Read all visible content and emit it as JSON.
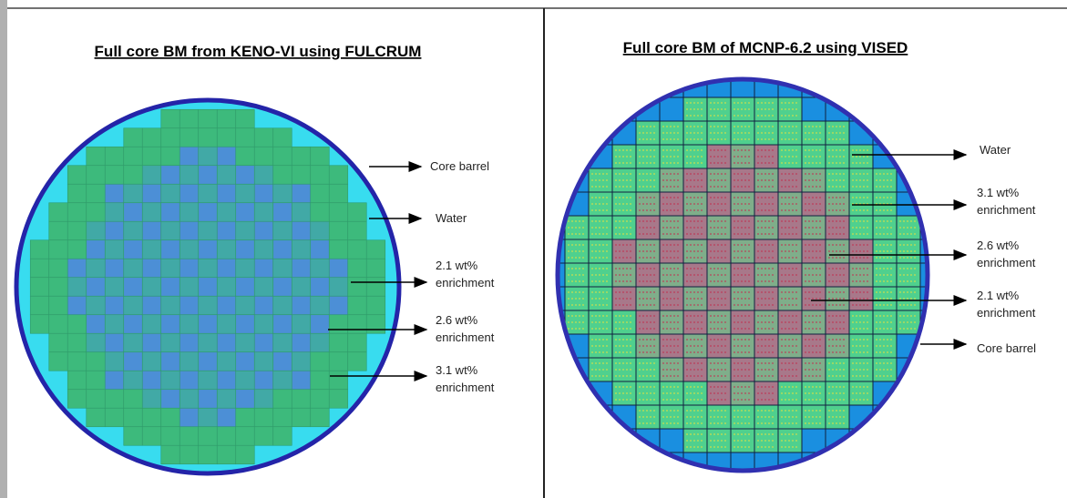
{
  "panels": [
    {
      "title": "Full core BM from KENO-VI using FULCRUM",
      "labels": [
        {
          "lines": [
            "Core barrel"
          ]
        },
        {
          "lines": [
            "Water"
          ]
        },
        {
          "lines": [
            "2.1 wt%",
            "enrichment"
          ]
        },
        {
          "lines": [
            "2.6 wt%",
            "enrichment"
          ]
        },
        {
          "lines": [
            "3.1 wt%",
            "enrichment"
          ]
        }
      ]
    },
    {
      "title": "Full core BM of MCNP-6.2 using VISED",
      "labels": [
        {
          "lines": [
            "Water"
          ]
        },
        {
          "lines": [
            "3.1 wt%",
            "enrichment"
          ]
        },
        {
          "lines": [
            "2.6 wt%",
            "enrichment"
          ]
        },
        {
          "lines": [
            "2.1 wt%",
            "enrichment"
          ]
        },
        {
          "lines": [
            "Core barrel"
          ]
        }
      ]
    }
  ]
}
